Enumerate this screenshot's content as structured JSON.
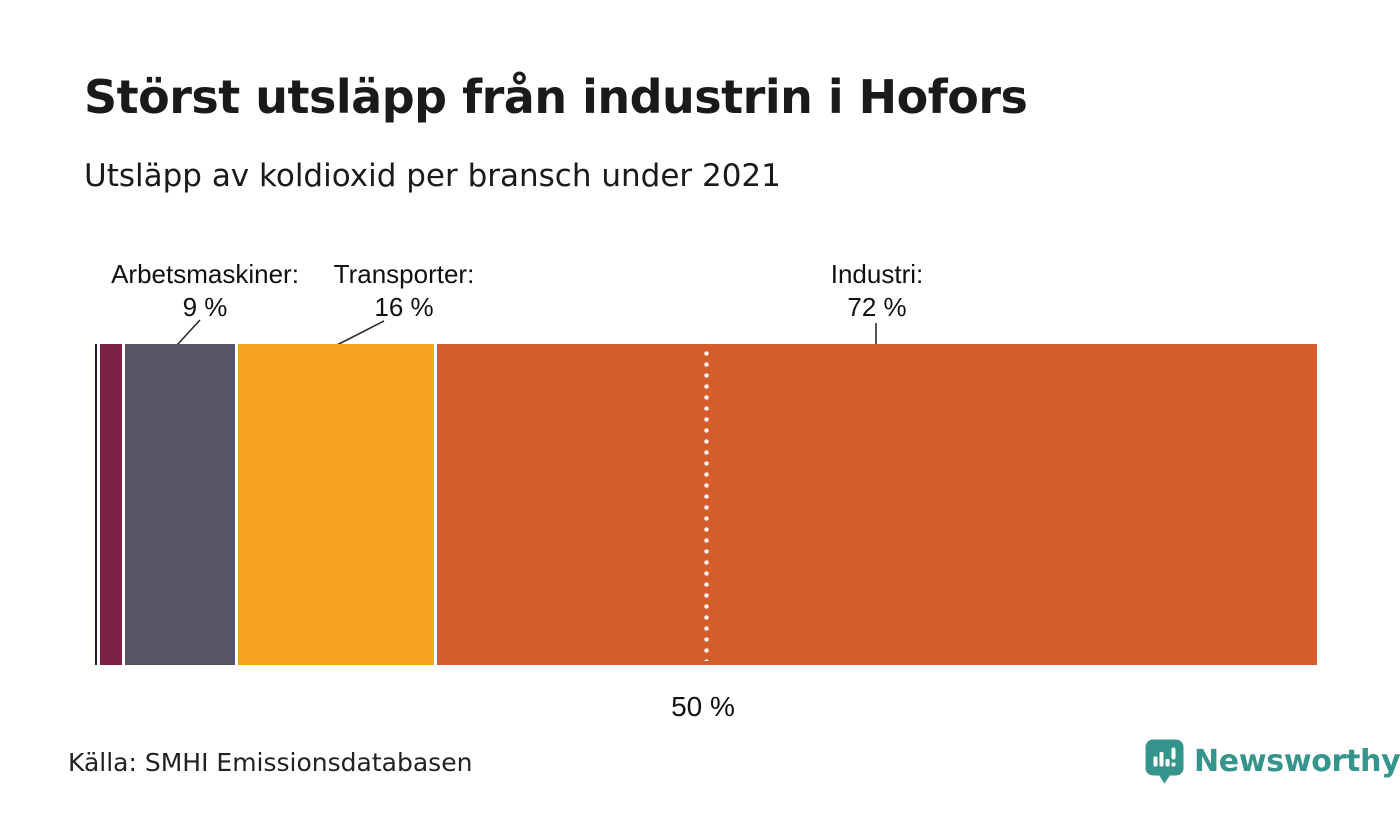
{
  "header": {
    "title": "Störst utsläpp från industrin i Hofors",
    "subtitle": "Utsläpp av koldioxid per bransch under 2021"
  },
  "chart_data": {
    "type": "bar",
    "variant": "stacked-horizontal-100percent",
    "title": "Störst utsläpp från industrin i Hofors",
    "subtitle": "Utsläpp av koldioxid per bransch under 2021",
    "unit": "%",
    "xlim": [
      0,
      100
    ],
    "axes_hidden": true,
    "grid": false,
    "legend": "none",
    "segments": [
      {
        "label": "",
        "value": 0.2,
        "color": "#231f30",
        "labeled": false
      },
      {
        "label": "",
        "value": 1.8,
        "color": "#7c2046",
        "labeled": false
      },
      {
        "label": "Arbetsmaskiner",
        "value": 9,
        "color": "#585463",
        "labeled": true
      },
      {
        "label": "Transporter",
        "value": 16,
        "color": "#f6a21e",
        "labeled": true
      },
      {
        "label": "Industri",
        "value": 72,
        "color": "#d55c2b",
        "labeled": true
      }
    ],
    "labels": [
      {
        "line1": "Arbetsmaskiner:",
        "line2": "9 %"
      },
      {
        "line1": "Transporter:",
        "line2": "16 %"
      },
      {
        "line1": "Industri:",
        "line2": "72 %"
      }
    ],
    "reference_line": {
      "position": 50,
      "label": "50 %",
      "style": "dotted-white"
    }
  },
  "footer": {
    "source": "Källa: SMHI Emissionsdatabasen",
    "brand": {
      "name": "Newsworthy",
      "color": "#35948b"
    }
  }
}
